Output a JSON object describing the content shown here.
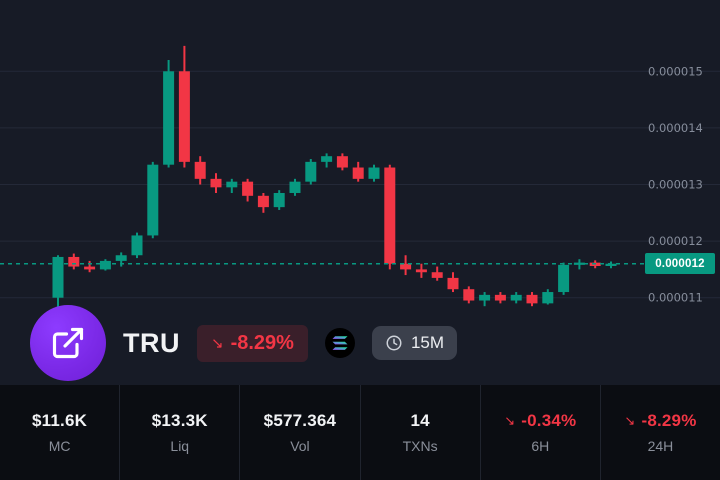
{
  "token": {
    "name": "TRU",
    "change": "-8.29%",
    "timeframe": "15M"
  },
  "icons": {
    "down_arrow": "↘"
  },
  "stats": [
    {
      "value": "$11.6K",
      "label": "MC"
    },
    {
      "value": "$13.3K",
      "label": "Liq"
    },
    {
      "value": "$577.364",
      "label": "Vol"
    },
    {
      "value": "14",
      "label": "TXNs"
    },
    {
      "value": "-0.34%",
      "label": "6H"
    },
    {
      "value": "-8.29%",
      "label": "24H"
    }
  ],
  "chart_data": {
    "type": "candlestick",
    "title": "TRU 15M price chart",
    "y_ticks": [
      1.1e-05,
      1.2e-05,
      1.3e-05,
      1.4e-05,
      1.5e-05
    ],
    "ylim": [
      1.05e-05,
      1.55e-05
    ],
    "current_price": 1.16e-05,
    "price_label": "0.000012",
    "grid": true,
    "legend": "none",
    "colors": {
      "up": "#089981",
      "down": "#f23645",
      "grid": "#242938",
      "axis_text": "#868d9b"
    },
    "candles": [
      [
        1.1e-05,
        1.175e-05,
        1.08e-05,
        1.172e-05
      ],
      [
        1.172e-05,
        1.178e-05,
        1.15e-05,
        1.155e-05
      ],
      [
        1.155e-05,
        1.165e-05,
        1.145e-05,
        1.15e-05
      ],
      [
        1.15e-05,
        1.168e-05,
        1.148e-05,
        1.165e-05
      ],
      [
        1.165e-05,
        1.18e-05,
        1.155e-05,
        1.175e-05
      ],
      [
        1.175e-05,
        1.215e-05,
        1.17e-05,
        1.21e-05
      ],
      [
        1.21e-05,
        1.34e-05,
        1.205e-05,
        1.335e-05
      ],
      [
        1.335e-05,
        1.52e-05,
        1.33e-05,
        1.5e-05
      ],
      [
        1.5e-05,
        1.545e-05,
        1.33e-05,
        1.34e-05
      ],
      [
        1.34e-05,
        1.35e-05,
        1.3e-05,
        1.31e-05
      ],
      [
        1.31e-05,
        1.32e-05,
        1.285e-05,
        1.295e-05
      ],
      [
        1.295e-05,
        1.31e-05,
        1.285e-05,
        1.305e-05
      ],
      [
        1.305e-05,
        1.31e-05,
        1.27e-05,
        1.28e-05
      ],
      [
        1.28e-05,
        1.285e-05,
        1.25e-05,
        1.26e-05
      ],
      [
        1.26e-05,
        1.29e-05,
        1.255e-05,
        1.285e-05
      ],
      [
        1.285e-05,
        1.31e-05,
        1.28e-05,
        1.305e-05
      ],
      [
        1.305e-05,
        1.345e-05,
        1.3e-05,
        1.34e-05
      ],
      [
        1.34e-05,
        1.355e-05,
        1.33e-05,
        1.35e-05
      ],
      [
        1.35e-05,
        1.355e-05,
        1.325e-05,
        1.33e-05
      ],
      [
        1.33e-05,
        1.34e-05,
        1.305e-05,
        1.31e-05
      ],
      [
        1.31e-05,
        1.335e-05,
        1.305e-05,
        1.33e-05
      ],
      [
        1.33e-05,
        1.335e-05,
        1.15e-05,
        1.16e-05
      ],
      [
        1.16e-05,
        1.175e-05,
        1.14e-05,
        1.15e-05
      ],
      [
        1.15e-05,
        1.16e-05,
        1.135e-05,
        1.145e-05
      ],
      [
        1.145e-05,
        1.155e-05,
        1.13e-05,
        1.135e-05
      ],
      [
        1.135e-05,
        1.145e-05,
        1.11e-05,
        1.115e-05
      ],
      [
        1.115e-05,
        1.12e-05,
        1.09e-05,
        1.095e-05
      ],
      [
        1.095e-05,
        1.11e-05,
        1.085e-05,
        1.105e-05
      ],
      [
        1.105e-05,
        1.11e-05,
        1.09e-05,
        1.095e-05
      ],
      [
        1.095e-05,
        1.11e-05,
        1.09e-05,
        1.105e-05
      ],
      [
        1.105e-05,
        1.11e-05,
        1.085e-05,
        1.09e-05
      ],
      [
        1.09e-05,
        1.115e-05,
        1.088e-05,
        1.11e-05
      ],
      [
        1.11e-05,
        1.162e-05,
        1.105e-05,
        1.158e-05
      ],
      [
        1.158e-05,
        1.168e-05,
        1.15e-05,
        1.162e-05
      ],
      [
        1.162e-05,
        1.166e-05,
        1.152e-05,
        1.156e-05
      ],
      [
        1.156e-05,
        1.164e-05,
        1.152e-05,
        1.16e-05
      ]
    ]
  }
}
